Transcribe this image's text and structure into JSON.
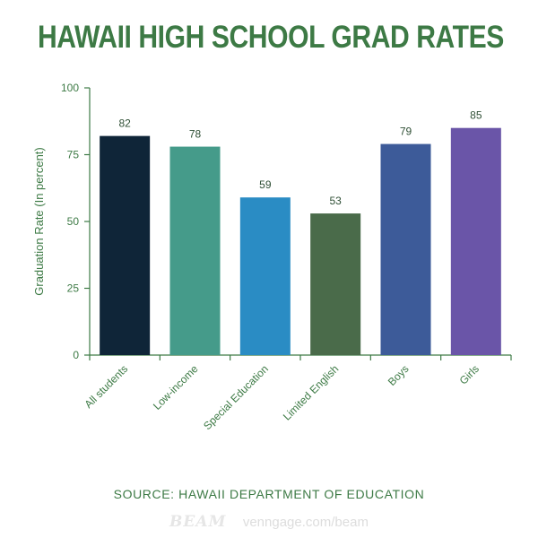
{
  "title": "HAWAII HIGH SCHOOL GRAD RATES",
  "source": "SOURCE: HAWAII DEPARTMENT OF EDUCATION",
  "footer": {
    "logo": "BEAM",
    "url": "venngage.com/beam"
  },
  "colors": {
    "title": "#3d7a45",
    "axis": "#3d7a45",
    "tick_label": "#3d7a45",
    "value_label": "#2f4f35"
  },
  "chart_data": {
    "type": "bar",
    "title": "HAWAII HIGH SCHOOL GRAD RATES",
    "xlabel": "",
    "ylabel": "Graduation Rate (In percent)",
    "ylim": [
      0,
      100
    ],
    "yticks": [
      0,
      25,
      50,
      75,
      100
    ],
    "grid": false,
    "categories": [
      "All students",
      "Low-income",
      "Special Education",
      "Limited English",
      "Boys",
      "Girls"
    ],
    "values": [
      82,
      78,
      59,
      53,
      79,
      85
    ],
    "bar_colors": [
      "#0f2538",
      "#459b8a",
      "#2a8cc4",
      "#4a6b4a",
      "#3d5b99",
      "#6a55a8"
    ],
    "value_labels": [
      "82",
      "78",
      "59",
      "53",
      "79",
      "85"
    ]
  }
}
